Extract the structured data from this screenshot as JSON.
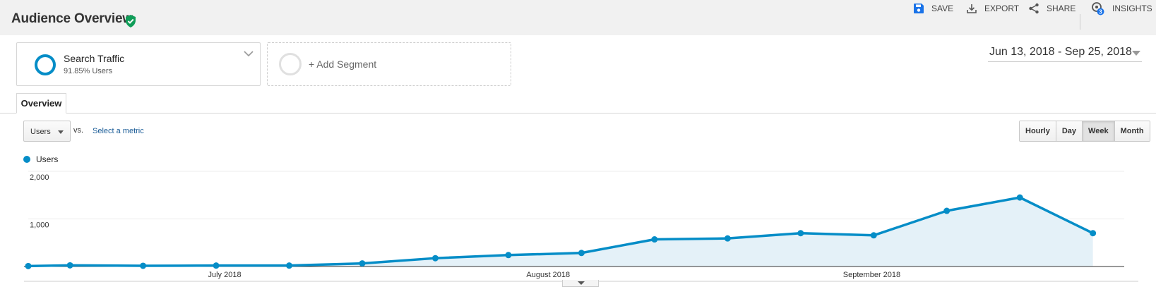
{
  "page": {
    "title": "Audience Overview",
    "verified_icon": "shield-check-icon"
  },
  "actions": [
    {
      "label": "SAVE",
      "icon": "save-icon"
    },
    {
      "label": "EXPORT",
      "icon": "export-icon"
    },
    {
      "label": "SHARE",
      "icon": "share-icon"
    },
    {
      "label": "INSIGHTS",
      "icon": "insights-icon",
      "badge": "3"
    }
  ],
  "segment": {
    "name": "Search Traffic",
    "subtitle": "91.85% Users",
    "add_label": "+ Add Segment"
  },
  "date_range": "Jun 13, 2018 - Sep 25, 2018",
  "tabs": [
    "Overview"
  ],
  "metric": {
    "selected": "Users",
    "vs_label": "vs.",
    "select_label": "Select a metric"
  },
  "granularity": {
    "options": [
      "Hourly",
      "Day",
      "Week",
      "Month"
    ],
    "selected": "Week"
  },
  "colors": {
    "series": "#058dc7",
    "fill": "#e4f1f8",
    "brand_green": "#0f9d58",
    "save_blue": "#1a73e8"
  },
  "chart_data": {
    "type": "area",
    "series": [
      {
        "name": "Users",
        "x": [
          "2018-06-13",
          "2018-06-17",
          "2018-06-24",
          "2018-07-01",
          "2018-07-08",
          "2018-07-15",
          "2018-07-22",
          "2018-07-29",
          "2018-08-05",
          "2018-08-12",
          "2018-08-19",
          "2018-08-26",
          "2018-09-02",
          "2018-09-09",
          "2018-09-16",
          "2018-09-23"
        ],
        "values": [
          10,
          25,
          15,
          20,
          20,
          65,
          175,
          240,
          285,
          570,
          590,
          700,
          655,
          1170,
          1450,
          700
        ]
      }
    ],
    "x_range": [
      "2018-06-13",
      "2018-09-26"
    ],
    "x_ticks": [
      {
        "label": "July 2018",
        "date": "2018-07-01"
      },
      {
        "label": "August 2018",
        "date": "2018-08-01"
      },
      {
        "label": "September 2018",
        "date": "2018-09-01"
      }
    ],
    "y_ticks": [
      "2,000",
      "1,000"
    ],
    "y_tick_values": [
      2000,
      1000
    ],
    "ylim": [
      0,
      2000
    ],
    "grid": true,
    "legend": "top-left"
  }
}
